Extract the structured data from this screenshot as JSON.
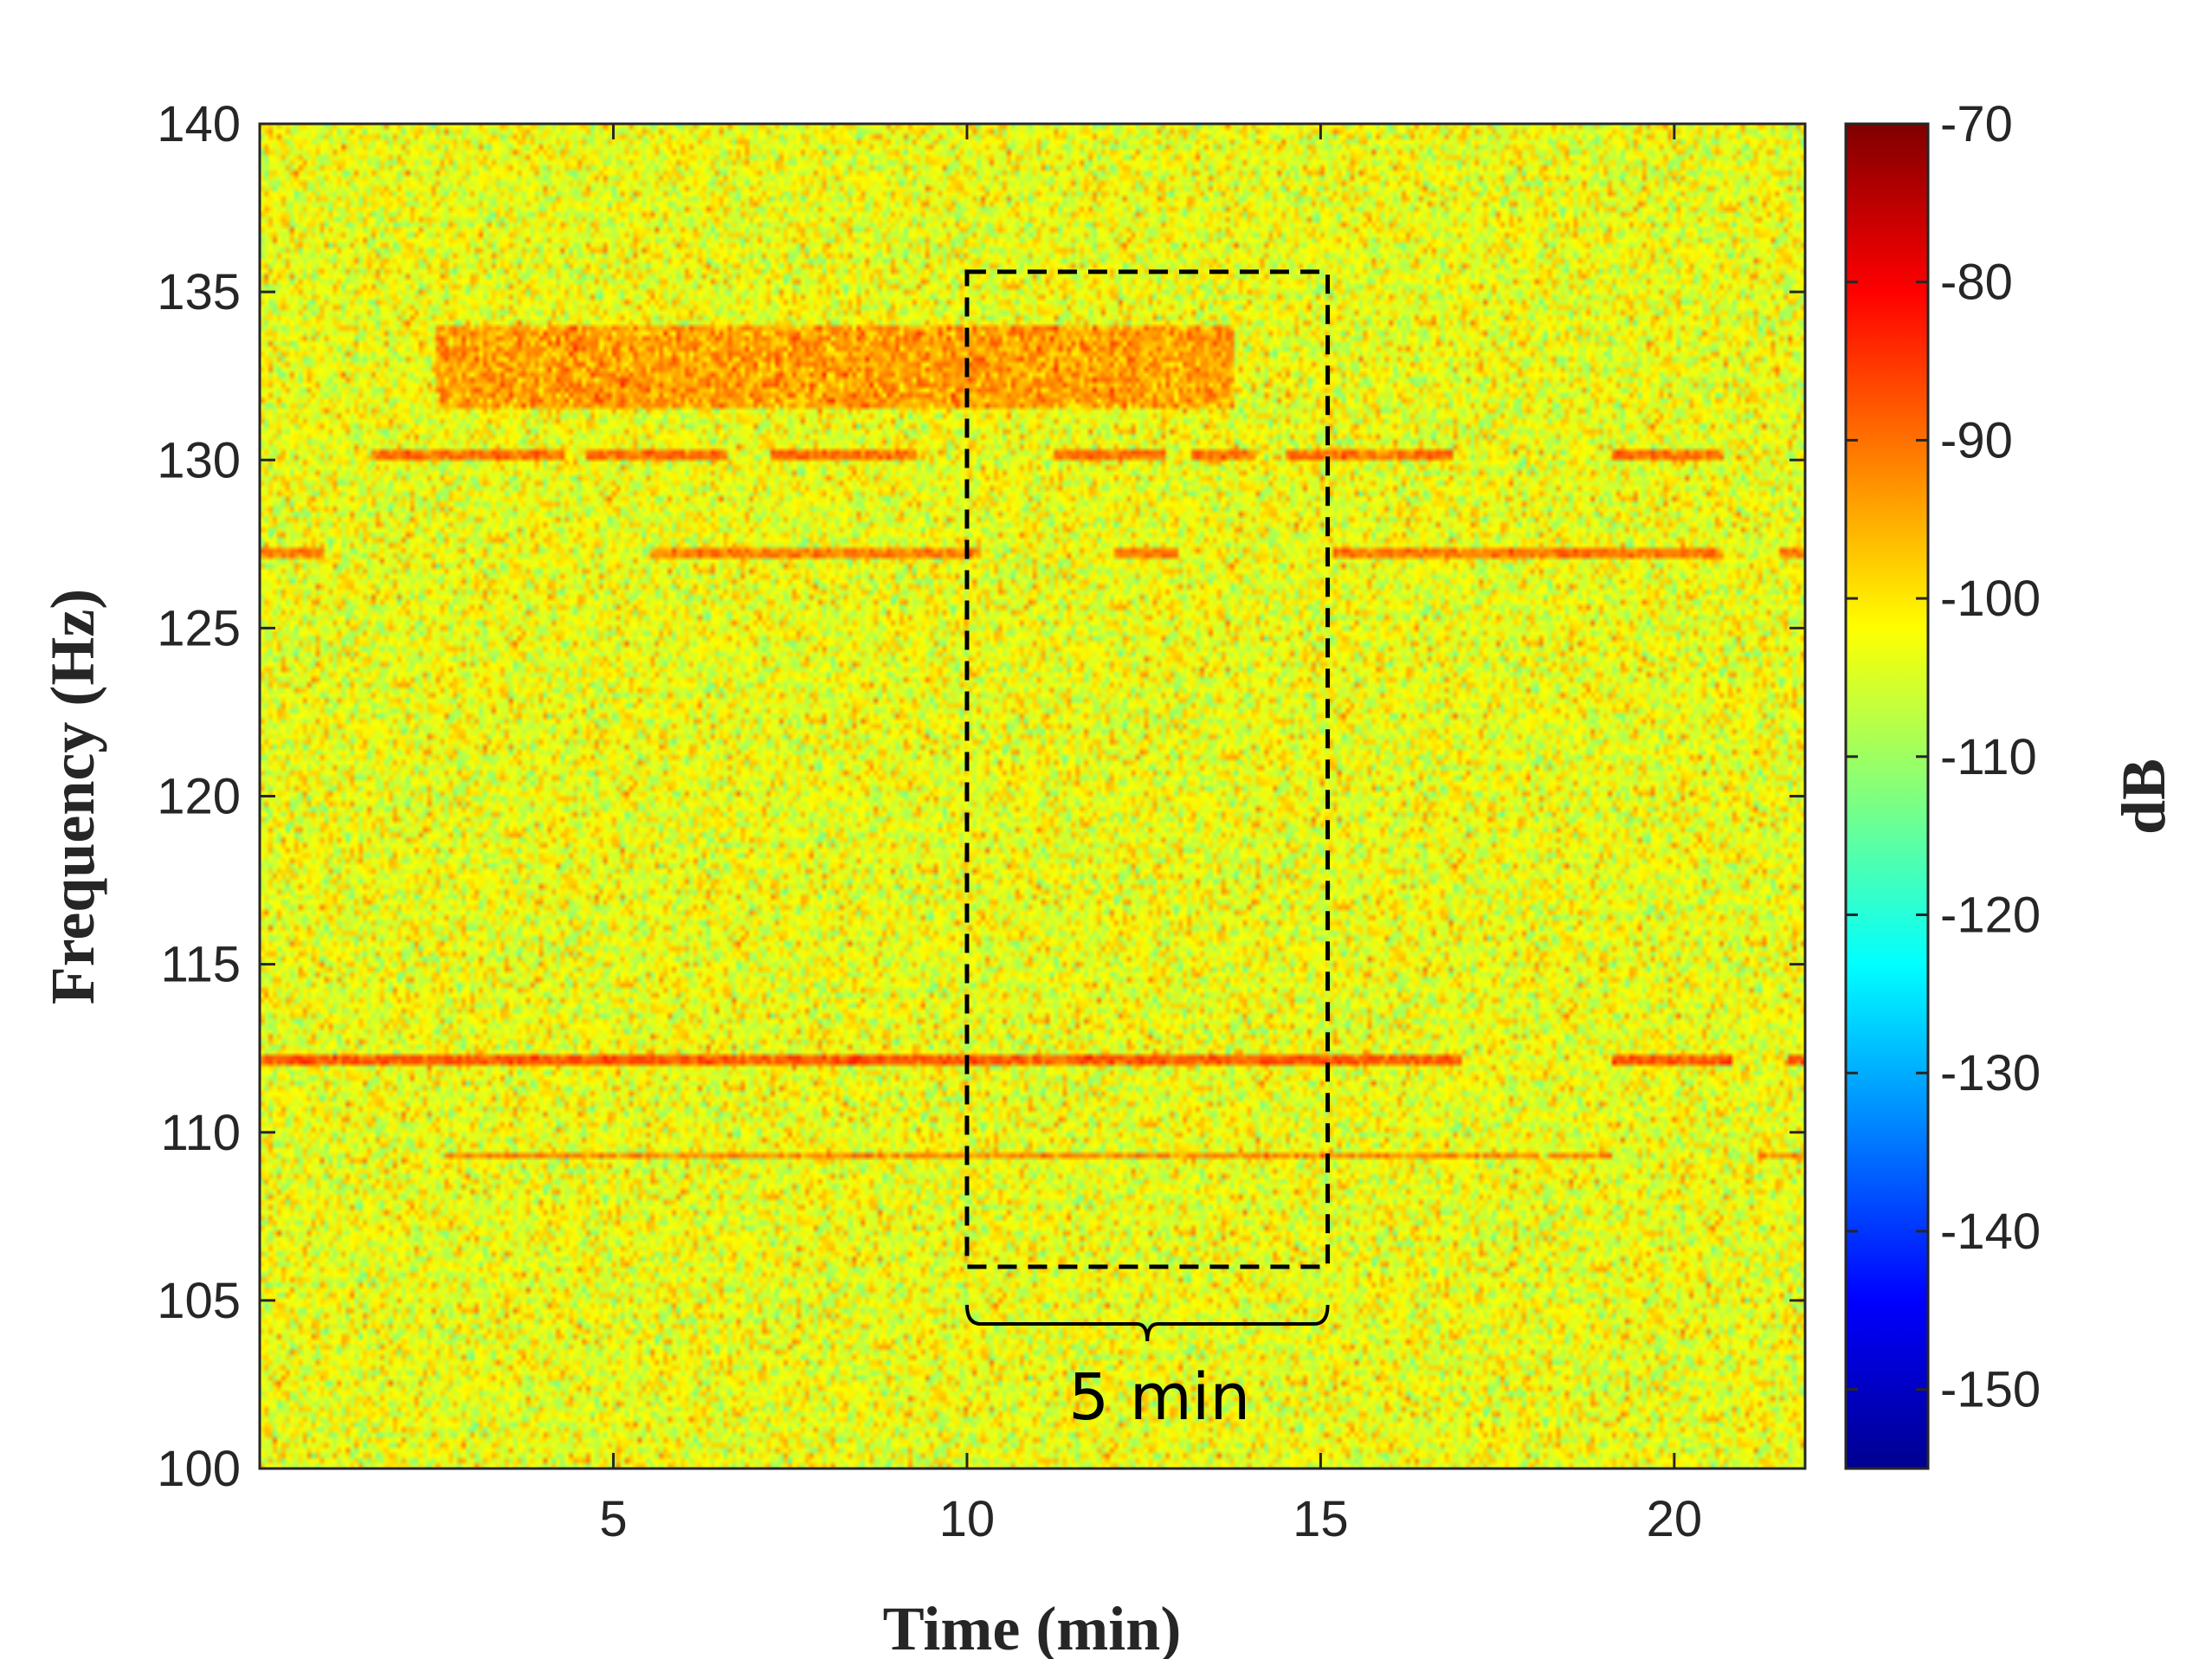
{
  "chart_data": {
    "type": "heatmap",
    "title": "",
    "xlabel": "Time (min)",
    "ylabel": "Frequency (Hz)",
    "xlim": [
      0,
      21.85
    ],
    "ylim": [
      100,
      140
    ],
    "x_ticks": [
      5,
      10,
      15,
      20
    ],
    "x_tick_labels": [
      "5",
      "10",
      "15",
      "20"
    ],
    "y_ticks": [
      100,
      105,
      110,
      115,
      120,
      125,
      130,
      135,
      140
    ],
    "y_tick_labels": [
      "100",
      "105",
      "110",
      "115",
      "120",
      "125",
      "130",
      "135",
      "140"
    ],
    "colorbar": {
      "label": "dB",
      "range": [
        -155,
        -70
      ],
      "ticks": [
        -70,
        -80,
        -90,
        -100,
        -110,
        -120,
        -130,
        -140,
        -150
      ],
      "tick_labels": [
        "-70",
        "-80",
        "-90",
        "-100",
        "-110",
        "-120",
        "-130",
        "-140",
        "-150"
      ],
      "colormap": "jet"
    },
    "background_level_db": -103,
    "tonal_lines": [
      {
        "freq_hz": 112.2,
        "level_db": -88,
        "segments": [
          [
            0,
            17
          ],
          [
            19.1,
            20.8
          ],
          [
            21.6,
            21.85
          ]
        ]
      },
      {
        "freq_hz": 109.3,
        "level_db": -92,
        "segments": [
          [
            2.6,
            18.1
          ],
          [
            18.2,
            19.1
          ],
          [
            21.2,
            21.85
          ]
        ]
      },
      {
        "freq_hz": 127.2,
        "level_db": -91,
        "segments": [
          [
            0,
            0.9
          ],
          [
            5.5,
            10.2
          ],
          [
            12.1,
            13.0
          ],
          [
            15.2,
            20.7
          ],
          [
            21.5,
            21.85
          ]
        ]
      },
      {
        "freq_hz": 130.2,
        "level_db": -90,
        "segments": [
          [
            1.6,
            4.3
          ],
          [
            4.6,
            6.6
          ],
          [
            7.2,
            9.3
          ],
          [
            11.2,
            12.8
          ],
          [
            13.2,
            14.1
          ],
          [
            14.5,
            16.9
          ],
          [
            19.1,
            20.7
          ]
        ]
      }
    ],
    "broadband_band": {
      "freq_range_hz": [
        131.5,
        134.0
      ],
      "time_range_min": [
        2.5,
        13.8
      ],
      "level_db": -94
    },
    "annotations": {
      "box": {
        "time_min": [
          10.0,
          15.1
        ],
        "freq_hz": [
          106.0,
          135.6
        ],
        "style": "dashed"
      },
      "brace": {
        "time_min": [
          10.0,
          15.1
        ],
        "freq_hz": 104.3
      },
      "text": "5 min"
    }
  }
}
